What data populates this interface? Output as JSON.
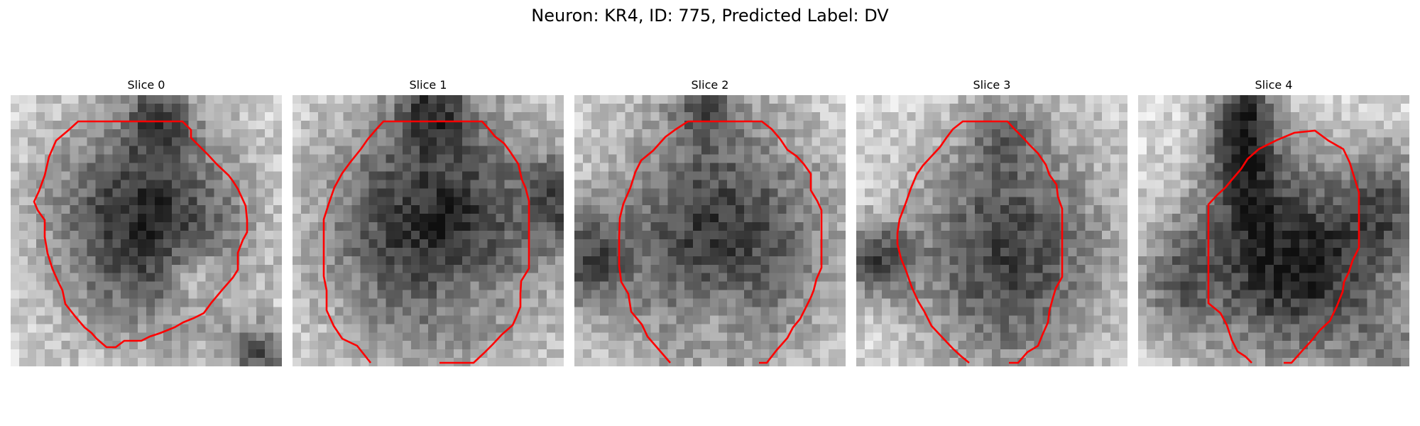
{
  "figure": {
    "title": "Neuron: KR4, ID: 775, Predicted Label: DV"
  },
  "panels": [
    {
      "title": "Slice 0"
    },
    {
      "title": "Slice 1"
    },
    {
      "title": "Slice 2"
    },
    {
      "title": "Slice 3"
    },
    {
      "title": "Slice 4"
    }
  ],
  "colors": {
    "contour": "#ff0000",
    "background": "#ffffff",
    "image_colormap": "grayscale-inverted"
  }
}
